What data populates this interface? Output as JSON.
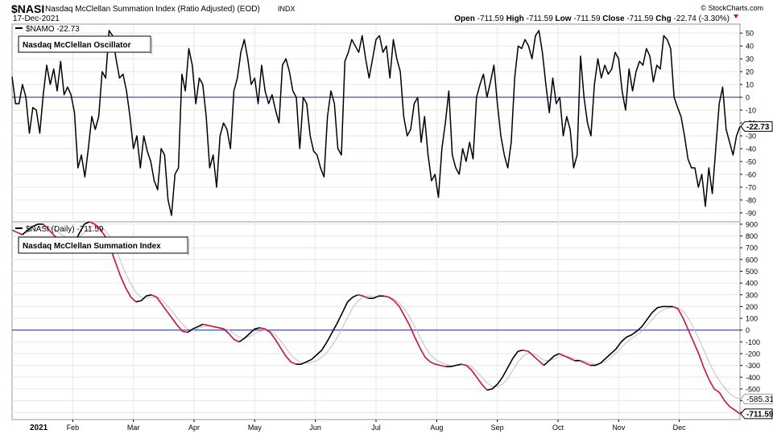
{
  "header": {
    "symbol": "$NASI",
    "description": "Nasdaq McClellan Summation Index (Ratio Adjusted) (EOD)",
    "exchange": "INDX",
    "date": "17-Dec-2021",
    "brand": "© StockCharts.com",
    "quote": [
      {
        "label": "Open",
        "value": "-711.59"
      },
      {
        "label": "High",
        "value": "-711.59"
      },
      {
        "label": "Low",
        "value": "-711.59"
      },
      {
        "label": "Close",
        "value": "-711.59"
      },
      {
        "label": "Chg",
        "value": "-22.74 (-3.30%)"
      }
    ]
  },
  "colors": {
    "price_line": "#000000",
    "down_line": "#d0103a",
    "ma_line": "#c0c0c0",
    "zero_line": "#1c2a6e",
    "grid": "#e6e6e6",
    "down_arrow": "#c0143c"
  },
  "chart_data": [
    {
      "type": "line",
      "title": "Nasdaq McClellan Oscillator",
      "legend": "$NAMO -22.73",
      "last_value_label": "-22.73",
      "y_ticks": [
        50,
        40,
        30,
        20,
        10,
        0,
        -10,
        -20,
        -30,
        -40,
        -50,
        -60,
        -70,
        -80,
        -90
      ],
      "ylim": [
        -97,
        57
      ],
      "reference_line": 0,
      "grid": true,
      "series": [
        {
          "values": [
            16,
            -5,
            -5,
            10,
            0,
            -28,
            -8,
            -10,
            -28,
            2,
            25,
            10,
            22,
            5,
            28,
            2,
            8,
            2,
            -12,
            -55,
            -45,
            -62,
            -40,
            -15,
            -25,
            -15,
            20,
            15,
            52,
            48,
            30,
            15,
            18,
            5,
            -15,
            -40,
            -30,
            -55,
            -30,
            -42,
            -50,
            -65,
            -72,
            -40,
            -45,
            -80,
            -92,
            -60,
            -55,
            18,
            5,
            38,
            25,
            -5,
            15,
            10,
            -15,
            -55,
            -45,
            -70,
            -30,
            -20,
            -25,
            -40,
            5,
            15,
            35,
            45,
            30,
            10,
            15,
            -5,
            25,
            5,
            -5,
            2,
            -10,
            -20,
            25,
            30,
            20,
            5,
            0,
            -40,
            0,
            -5,
            -30,
            -42,
            -45,
            -55,
            -62,
            -15,
            5,
            -5,
            -40,
            -45,
            28,
            35,
            45,
            40,
            35,
            48,
            30,
            15,
            30,
            45,
            48,
            35,
            40,
            15,
            45,
            30,
            20,
            -15,
            -30,
            -25,
            -5,
            0,
            -35,
            -15,
            -45,
            -65,
            -60,
            -78,
            -40,
            -20,
            5,
            -45,
            -55,
            -60,
            -40,
            -50,
            -35,
            -48,
            0,
            10,
            18,
            0,
            12,
            25,
            -5,
            -30,
            -45,
            -55,
            -35,
            15,
            40,
            38,
            45,
            40,
            30,
            48,
            52,
            35,
            10,
            -12,
            15,
            -5,
            0,
            -30,
            -15,
            -25,
            -55,
            -45,
            32,
            0,
            -20,
            -30,
            10,
            30,
            15,
            25,
            18,
            22,
            35,
            30,
            5,
            -10,
            22,
            5,
            20,
            28,
            25,
            38,
            32,
            12,
            25,
            22,
            48,
            45,
            38,
            0,
            -8,
            -15,
            -30,
            -48,
            -55,
            -55,
            -70,
            -60,
            -85,
            -55,
            -75,
            -40,
            -5,
            8,
            -25,
            -35,
            -45,
            -30,
            -22.73
          ]
        }
      ]
    },
    {
      "type": "line",
      "title": "Nasdaq McClellan Summation Index",
      "legend": "$NASI (Daily) -711.59",
      "last_value_label": "-711.59",
      "ma_value_label": "-585.31",
      "xlabel": "2021",
      "x_ticks": [
        "Feb",
        "Mar",
        "Apr",
        "May",
        "Jun",
        "Jul",
        "Aug",
        "Sep",
        "Oct",
        "Nov",
        "Dec"
      ],
      "y_ticks": [
        900,
        800,
        700,
        600,
        500,
        400,
        300,
        200,
        100,
        0,
        -100,
        -200,
        -300,
        -400,
        -500,
        -600,
        -700
      ],
      "ylim": [
        -760,
        920
      ],
      "reference_line": 0,
      "grid": true,
      "series": [
        {
          "name": "$NASI",
          "values": [
            850,
            830,
            810,
            850,
            880,
            900,
            900,
            860,
            810,
            770,
            720,
            700,
            730,
            820,
            900,
            920,
            900,
            860,
            800,
            700,
            580,
            460,
            360,
            280,
            240,
            250,
            290,
            300,
            280,
            220,
            160,
            100,
            40,
            -10,
            -20,
            10,
            30,
            50,
            40,
            30,
            20,
            10,
            -30,
            -80,
            -100,
            -70,
            -30,
            10,
            20,
            10,
            -20,
            -80,
            -150,
            -220,
            -270,
            -290,
            -290,
            -270,
            -250,
            -210,
            -170,
            -100,
            -20,
            60,
            150,
            240,
            280,
            300,
            290,
            270,
            270,
            290,
            290,
            280,
            250,
            200,
            120,
            40,
            -60,
            -150,
            -230,
            -270,
            -290,
            -300,
            -310,
            -310,
            -300,
            -290,
            -300,
            -340,
            -400,
            -460,
            -510,
            -500,
            -460,
            -400,
            -320,
            -240,
            -180,
            -170,
            -180,
            -220,
            -260,
            -300,
            -260,
            -220,
            -200,
            -220,
            -240,
            -260,
            -260,
            -280,
            -300,
            -300,
            -280,
            -240,
            -200,
            -160,
            -100,
            -60,
            -40,
            -10,
            30,
            90,
            150,
            190,
            200,
            200,
            200,
            180,
            100,
            0,
            -100,
            -200,
            -320,
            -420,
            -500,
            -530,
            -600,
            -650,
            -680,
            -711.59
          ]
        },
        {
          "name": "MA",
          "values": [
            850,
            830,
            820,
            830,
            850,
            870,
            880,
            880,
            860,
            830,
            800,
            780,
            770,
            790,
            830,
            870,
            890,
            880,
            850,
            790,
            700,
            590,
            480,
            390,
            320,
            280,
            270,
            280,
            280,
            260,
            210,
            160,
            100,
            50,
            10,
            0,
            15,
            30,
            35,
            30,
            25,
            15,
            0,
            -30,
            -60,
            -70,
            -55,
            -30,
            -10,
            0,
            -10,
            -40,
            -90,
            -150,
            -210,
            -250,
            -275,
            -280,
            -275,
            -260,
            -230,
            -190,
            -130,
            -60,
            20,
            110,
            190,
            250,
            280,
            290,
            285,
            285,
            285,
            280,
            265,
            230,
            180,
            110,
            30,
            -60,
            -140,
            -210,
            -250,
            -275,
            -290,
            -300,
            -300,
            -295,
            -295,
            -310,
            -350,
            -400,
            -450,
            -480,
            -480,
            -460,
            -410,
            -340,
            -270,
            -220,
            -195,
            -200,
            -225,
            -255,
            -260,
            -245,
            -225,
            -220,
            -230,
            -245,
            -255,
            -265,
            -280,
            -290,
            -285,
            -265,
            -235,
            -195,
            -150,
            -105,
            -70,
            -40,
            -10,
            40,
            90,
            140,
            170,
            185,
            195,
            190,
            160,
            100,
            20,
            -70,
            -170,
            -270,
            -360,
            -430,
            -490,
            -540,
            -570,
            -585.31
          ]
        }
      ]
    }
  ]
}
